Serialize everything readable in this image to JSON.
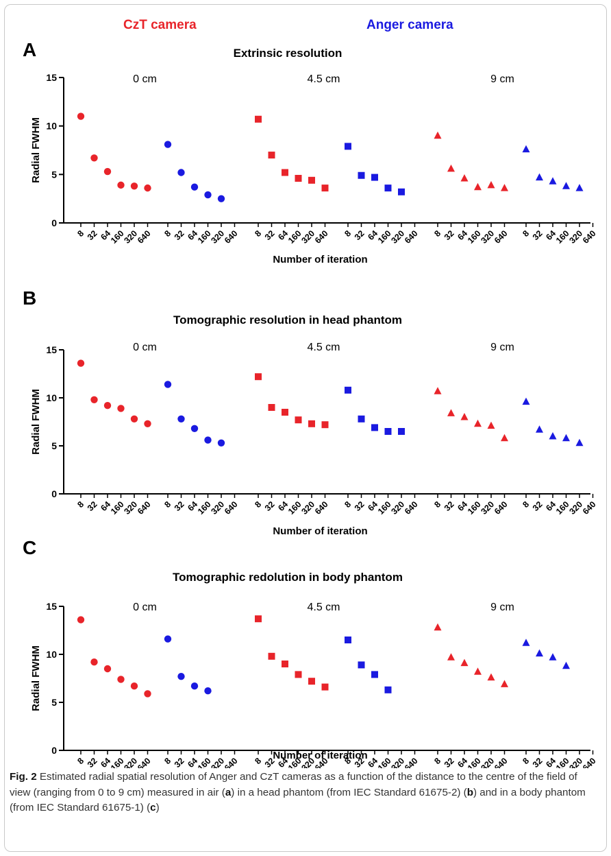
{
  "legend": {
    "czt_label": "CzT camera",
    "czt_color": "#e8242a",
    "anger_label": "Anger camera",
    "anger_color": "#1a1ae0"
  },
  "caption": {
    "prefix": "Fig. 2",
    "p1": " Estimated radial spatial resolution of Anger and CzT cameras as a function of the distance to the centre of the field of view (ranging from 0 to 9 cm) measured in air (",
    "a": "a",
    "p2": ") in a head phantom (from IEC Standard 61675-2) (",
    "b": "b",
    "p3": ") and in a body phantom (from IEC Standard 61675-1) (",
    "c": "c",
    "p4": ")"
  },
  "chart_data": [
    {
      "type": "scatter",
      "panel": "A",
      "title": "Extrinsic resolution",
      "xlabel": "Number of iteration",
      "ylabel": "Radial FWHM",
      "ylim": [
        0,
        15
      ],
      "yticks": [
        0,
        5,
        10,
        15
      ],
      "iterations": [
        "8",
        "32",
        "64",
        "160",
        "320",
        "640"
      ],
      "groups": [
        {
          "distance": "0 cm",
          "marker": "circle",
          "czt": [
            11.0,
            6.7,
            5.3,
            3.9,
            3.8,
            3.6
          ],
          "anger": [
            8.1,
            5.2,
            3.7,
            2.9,
            2.5,
            null
          ]
        },
        {
          "distance": "4.5 cm",
          "marker": "square",
          "czt": [
            10.7,
            7.0,
            5.2,
            4.6,
            4.4,
            3.6
          ],
          "anger": [
            7.9,
            4.9,
            4.7,
            3.6,
            3.2,
            null
          ]
        },
        {
          "distance": "9 cm",
          "marker": "triangle",
          "czt": [
            9.0,
            5.6,
            4.6,
            3.7,
            3.9,
            3.6
          ],
          "anger": [
            7.6,
            4.7,
            4.3,
            3.8,
            3.6,
            null
          ]
        }
      ]
    },
    {
      "type": "scatter",
      "panel": "B",
      "title": "Tomographic resolution in head phantom",
      "xlabel": "Number of iteration",
      "ylabel": "Radial FWHM",
      "ylim": [
        0,
        15
      ],
      "yticks": [
        0,
        5,
        10,
        15
      ],
      "iterations": [
        "8",
        "32",
        "64",
        "160",
        "320",
        "640"
      ],
      "groups": [
        {
          "distance": "0 cm",
          "marker": "circle",
          "czt": [
            13.6,
            9.8,
            9.2,
            8.9,
            7.8,
            7.3
          ],
          "anger": [
            11.4,
            7.8,
            6.8,
            5.6,
            5.3,
            null
          ]
        },
        {
          "distance": "4.5 cm",
          "marker": "square",
          "czt": [
            12.2,
            9.0,
            8.5,
            7.7,
            7.3,
            7.2
          ],
          "anger": [
            10.8,
            7.8,
            6.9,
            6.5,
            6.5,
            null
          ]
        },
        {
          "distance": "9 cm",
          "marker": "triangle",
          "czt": [
            10.7,
            8.4,
            8.0,
            7.3,
            7.1,
            5.8
          ],
          "anger": [
            9.6,
            6.7,
            6.0,
            5.8,
            5.3,
            null
          ]
        }
      ]
    },
    {
      "type": "scatter",
      "panel": "C",
      "title": "Tomographic redolution in body phantom",
      "xlabel": "Number of iteration",
      "ylabel": "Radial FWHM",
      "ylim": [
        0,
        15
      ],
      "yticks": [
        0,
        5,
        10,
        15
      ],
      "iterations": [
        "8",
        "32",
        "64",
        "160",
        "320",
        "640"
      ],
      "groups": [
        {
          "distance": "0 cm",
          "marker": "circle",
          "czt": [
            13.6,
            9.2,
            8.5,
            7.4,
            6.7,
            5.9
          ],
          "anger": [
            11.6,
            7.7,
            6.7,
            6.2,
            null,
            null
          ]
        },
        {
          "distance": "4.5 cm",
          "marker": "square",
          "czt": [
            13.7,
            9.8,
            9.0,
            7.9,
            7.2,
            6.6
          ],
          "anger": [
            11.5,
            8.9,
            7.9,
            6.3,
            null,
            null
          ]
        },
        {
          "distance": "9 cm",
          "marker": "triangle",
          "czt": [
            12.8,
            9.7,
            9.1,
            8.2,
            7.6,
            6.9
          ],
          "anger": [
            11.2,
            10.1,
            9.7,
            8.8,
            null,
            null
          ]
        }
      ]
    }
  ]
}
